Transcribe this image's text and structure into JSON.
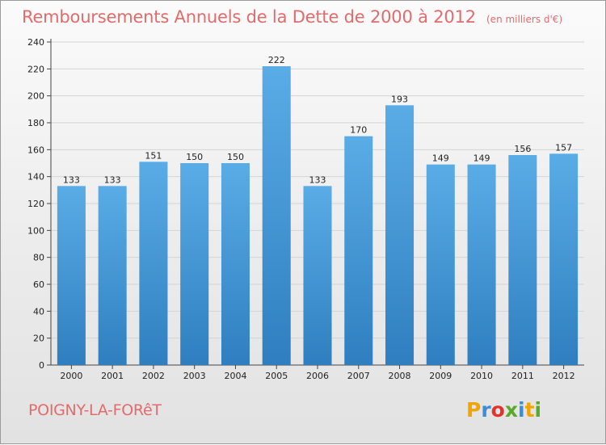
{
  "header": {
    "title": "Remboursements Annuels de la Dette de 2000 à 2012",
    "unit": "(en milliers d'€)"
  },
  "footer": {
    "town": "POIGNY-LA-FORêT",
    "brand": "Proxiti",
    "brand_colors": [
      "#f0a500",
      "#3b8ed6",
      "#e0342c",
      "#5aaa2a",
      "#3b8ed6",
      "#f0a500",
      "#5aaa2a"
    ]
  },
  "chart_data": {
    "type": "bar",
    "title": "Remboursements Annuels de la Dette de 2000 à 2012",
    "subtitle": "(en milliers d'€)",
    "categories": [
      "2000",
      "2001",
      "2002",
      "2003",
      "2004",
      "2005",
      "2006",
      "2007",
      "2008",
      "2009",
      "2010",
      "2011",
      "2012"
    ],
    "values": [
      133,
      133,
      151,
      150,
      150,
      222,
      133,
      170,
      193,
      149,
      149,
      156,
      157
    ],
    "ylim": [
      0,
      240
    ],
    "yticks": [
      0,
      20,
      40,
      60,
      80,
      100,
      120,
      140,
      160,
      180,
      200,
      220,
      240
    ],
    "grid": true,
    "bar_color_top": "#5aace6",
    "bar_color_bottom": "#2f7fc0"
  }
}
